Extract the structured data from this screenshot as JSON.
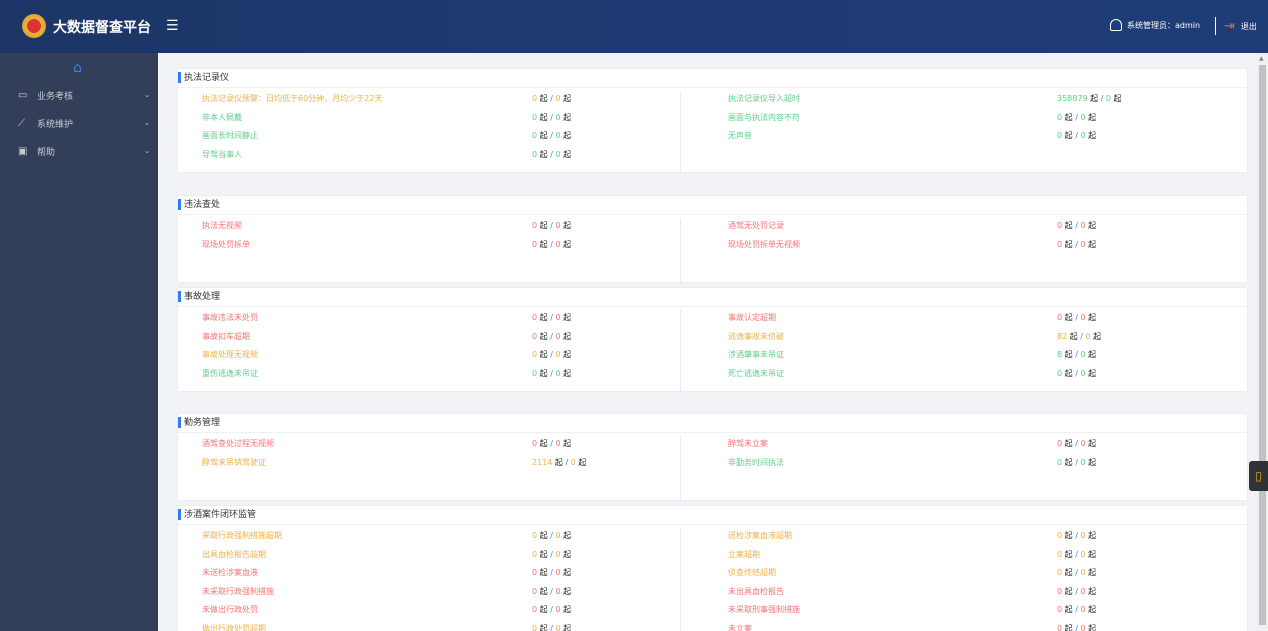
{
  "header": {
    "title": "大数据督查平台",
    "user_label": "系统管理员：admin",
    "logout": "退出"
  },
  "sidebar": {
    "items": [
      {
        "label": "业务考核",
        "icon": "inbox-icon"
      },
      {
        "label": "系统维护",
        "icon": "chart-line-icon"
      },
      {
        "label": "帮助",
        "icon": "monitor-icon"
      }
    ]
  },
  "unit": "起",
  "colors": {
    "orange": "#ecb14a",
    "green": "#5ccf8a",
    "red": "#f37474",
    "accent": "#2e7cf6"
  },
  "sections": [
    {
      "title": "执法记录仪",
      "rows": [
        {
          "label": "执法记录仪预警：日均低于60分钟，月均少于22天",
          "a": "0",
          "b": "0",
          "color": "orange"
        },
        {
          "label": "执法记录仪导入超时",
          "a": "358879",
          "b": "0",
          "color": "green"
        },
        {
          "label": "非本人佩戴",
          "a": "0",
          "b": "0",
          "color": "green"
        },
        {
          "label": "画面与执法内容不符",
          "a": "0",
          "b": "0",
          "color": "green"
        },
        {
          "label": "画面长时间静止",
          "a": "0",
          "b": "0",
          "color": "green"
        },
        {
          "label": "无声音",
          "a": "0",
          "b": "0",
          "color": "green"
        },
        {
          "label": "导驾当事人",
          "a": "0",
          "b": "0",
          "color": "green"
        }
      ]
    },
    {
      "title": "违法查处",
      "rows": [
        {
          "label": "执法无视频",
          "a": "0",
          "b": "0",
          "color": "red"
        },
        {
          "label": "酒驾无处罚记录",
          "a": "0",
          "b": "0",
          "color": "red"
        },
        {
          "label": "现场处罚拆单",
          "a": "0",
          "b": "0",
          "color": "red"
        },
        {
          "label": "现场处罚拆单无视频",
          "a": "0",
          "b": "0",
          "color": "red"
        }
      ]
    },
    {
      "title": "事故处理",
      "rows": [
        {
          "label": "事故违法未处罚",
          "a": "0",
          "b": "0",
          "color": "red"
        },
        {
          "label": "事故认定超期",
          "a": "0",
          "b": "0",
          "color": "red"
        },
        {
          "label": "事故扣车超期",
          "a": "0",
          "b": "0",
          "color": "red"
        },
        {
          "label": "逃逸事故未侦破",
          "a": "82",
          "b": "0",
          "color": "orange"
        },
        {
          "label": "事故处理无视频",
          "a": "0",
          "b": "0",
          "color": "orange"
        },
        {
          "label": "涉酒肇事未吊证",
          "a": "8",
          "b": "0",
          "color": "green"
        },
        {
          "label": "重伤逃逸未吊证",
          "a": "0",
          "b": "0",
          "color": "green"
        },
        {
          "label": "死亡逃逸未吊证",
          "a": "0",
          "b": "0",
          "color": "green"
        }
      ]
    },
    {
      "title": "勤务管理",
      "rows": [
        {
          "label": "酒驾查处过程无视频",
          "a": "0",
          "b": "0",
          "color": "red"
        },
        {
          "label": "醉驾未立案",
          "a": "0",
          "b": "0",
          "color": "red"
        },
        {
          "label": "醉驾未吊销驾驶证",
          "a": "2114",
          "b": "0",
          "color": "orange"
        },
        {
          "label": "非勤务时间执法",
          "a": "0",
          "b": "0",
          "color": "green"
        }
      ]
    },
    {
      "title": "涉酒案件闭环监管",
      "rows": [
        {
          "label": "采取行政强制措施超期",
          "a": "0",
          "b": "0",
          "color": "orange"
        },
        {
          "label": "送检涉案血液超期",
          "a": "0",
          "b": "0",
          "color": "orange"
        },
        {
          "label": "出具血检报告超期",
          "a": "0",
          "b": "0",
          "color": "orange"
        },
        {
          "label": "立案超期",
          "a": "0",
          "b": "0",
          "color": "orange"
        },
        {
          "label": "未送检涉案血液",
          "a": "0",
          "b": "0",
          "color": "red"
        },
        {
          "label": "侦查终结超期",
          "a": "0",
          "b": "0",
          "color": "orange"
        },
        {
          "label": "未采取行政强制措施",
          "a": "0",
          "b": "0",
          "color": "red"
        },
        {
          "label": "未出具血检报告",
          "a": "0",
          "b": "0",
          "color": "red"
        },
        {
          "label": "未做出行政处罚",
          "a": "0",
          "b": "0",
          "color": "red"
        },
        {
          "label": "未采取刑事强制措施",
          "a": "0",
          "b": "0",
          "color": "red"
        },
        {
          "label": "做出行政处罚超期",
          "a": "0",
          "b": "0",
          "color": "orange"
        },
        {
          "label": "未立案",
          "a": "0",
          "b": "0",
          "color": "red"
        }
      ]
    }
  ]
}
